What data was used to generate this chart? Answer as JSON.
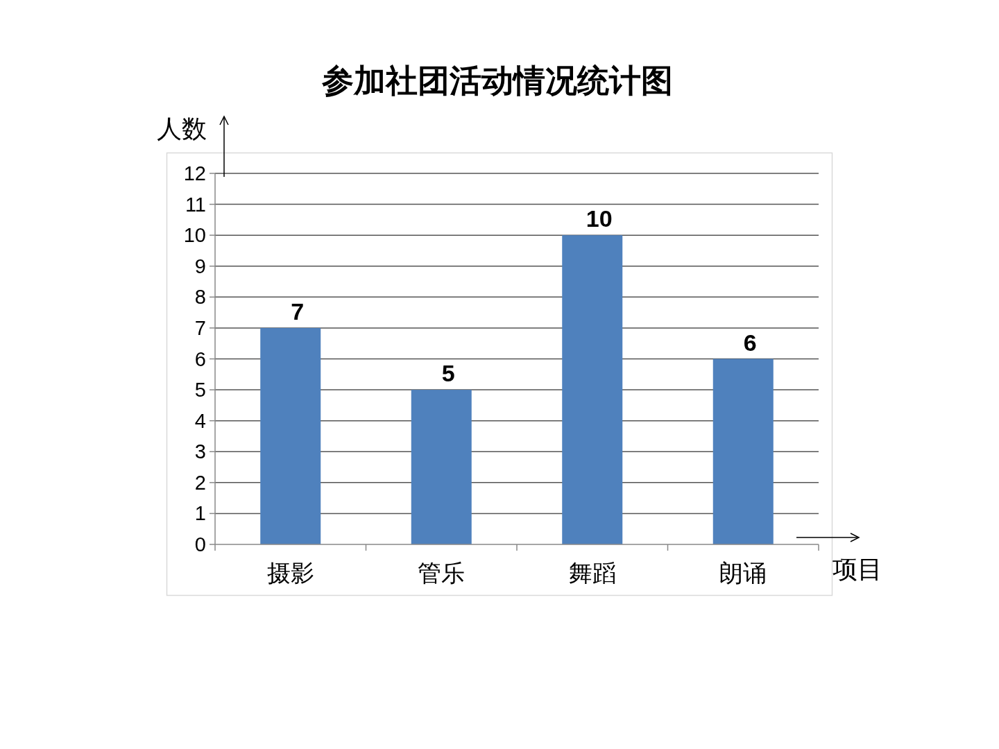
{
  "chart_data": {
    "type": "bar",
    "title": "参加社团活动情况统计图",
    "xlabel": "项目",
    "ylabel": "人数",
    "categories": [
      "摄影",
      "管乐",
      "舞蹈",
      "朗诵"
    ],
    "values": [
      7,
      5,
      10,
      6
    ],
    "color": "#4f81bd",
    "ylim": [
      0,
      12
    ],
    "yticks": [
      0,
      1,
      2,
      3,
      4,
      5,
      6,
      7,
      8,
      9,
      10,
      11,
      12
    ],
    "grid": "y",
    "data_labels": true
  }
}
